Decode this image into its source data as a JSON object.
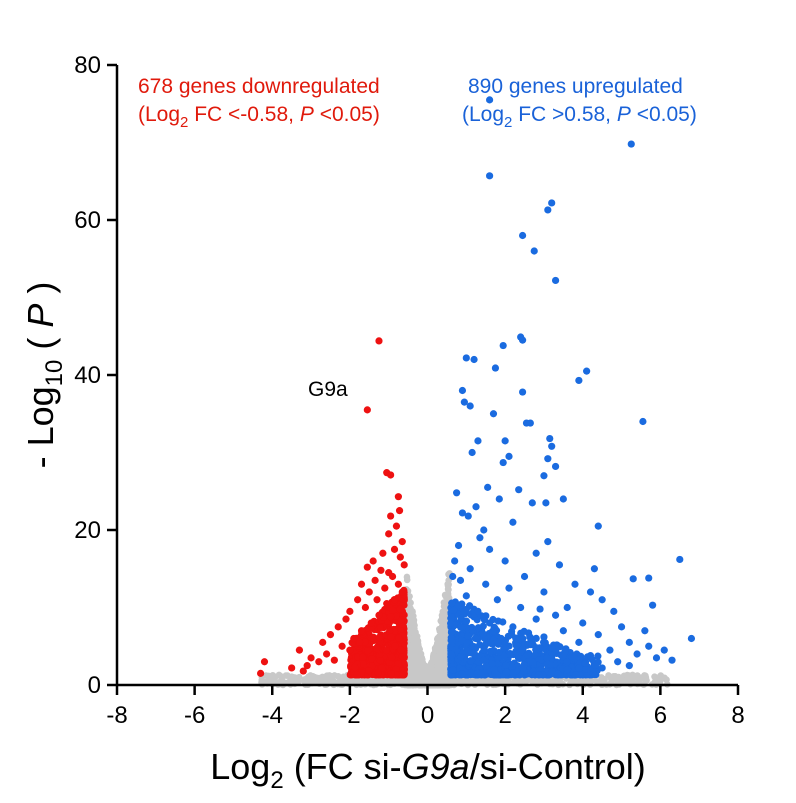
{
  "chart_data": {
    "type": "scatter",
    "title": "",
    "xlabel": {
      "prefix": "Log",
      "sub": "2",
      "mid": " (FC si-",
      "italic": "G9a",
      "suffix": "/si-Control)"
    },
    "ylabel": {
      "prefix": "- Log",
      "sub": "10",
      "mid": " ( ",
      "italic": "P",
      "suffix": " )"
    },
    "xlim": [
      -8,
      8
    ],
    "ylim": [
      0,
      80
    ],
    "x_ticks": [
      -8,
      -6,
      -4,
      -2,
      0,
      2,
      4,
      6,
      8
    ],
    "y_ticks": [
      0,
      20,
      40,
      60,
      80
    ],
    "x_tick_labels": [
      "-8",
      "-6",
      "-4",
      "-2",
      "0",
      "2",
      "4",
      "6",
      "8"
    ],
    "y_tick_labels": [
      "0",
      "20",
      "40",
      "60",
      "80"
    ],
    "colors": {
      "down": "#ee1111",
      "up": "#1a6be0",
      "ns": "#c8c8c8",
      "axis": "#000000"
    },
    "annotations": {
      "down_line1": "678 genes downregulated",
      "down_line2": {
        "pre": "(Log",
        "sub": "2",
        "mid": " FC <-0.58, ",
        "italic": "P",
        "post": " <0.05)"
      },
      "up_line1": "890 genes upregulated",
      "up_line2": {
        "pre": "(Log",
        "sub": "2",
        "mid": " FC >0.58, ",
        "italic": "P",
        "post": " <0.05)"
      },
      "gene_label": "G9a"
    },
    "highlighted_gene": {
      "name": "G9a",
      "x": -1.55,
      "y": 35.5
    },
    "series": [
      {
        "name": "downregulated",
        "color": "#ee1111",
        "points": [
          [
            -1.25,
            44.4
          ],
          [
            -1.55,
            35.5
          ],
          [
            -1.05,
            27.4
          ],
          [
            -0.95,
            27.1
          ],
          [
            -0.75,
            24.3
          ],
          [
            -0.72,
            22.5
          ],
          [
            -0.95,
            21.8
          ],
          [
            -0.8,
            20.5
          ],
          [
            -1.0,
            19.5
          ],
          [
            -0.65,
            18.5
          ],
          [
            -0.85,
            17.5
          ],
          [
            -1.15,
            17.0
          ],
          [
            -1.4,
            16.0
          ],
          [
            -0.7,
            16.5
          ],
          [
            -1.55,
            15.2
          ],
          [
            -0.6,
            15.5
          ],
          [
            -1.2,
            14.8
          ],
          [
            -1.0,
            14.5
          ],
          [
            -0.9,
            14.0
          ],
          [
            -1.35,
            13.5
          ],
          [
            -1.7,
            13.0
          ],
          [
            -0.75,
            13.0
          ],
          [
            -1.1,
            12.5
          ],
          [
            -1.5,
            12.0
          ],
          [
            -0.65,
            12.0
          ],
          [
            -1.3,
            11.0
          ],
          [
            -1.8,
            11.0
          ],
          [
            -0.85,
            11.0
          ],
          [
            -1.05,
            10.5
          ],
          [
            -1.6,
            10.0
          ],
          [
            -2.0,
            9.5
          ],
          [
            -0.7,
            9.8
          ],
          [
            -1.25,
            9.0
          ],
          [
            -2.1,
            8.5
          ],
          [
            -0.95,
            8.8
          ],
          [
            -1.45,
            8.0
          ],
          [
            -2.3,
            7.5
          ],
          [
            -1.7,
            7.0
          ],
          [
            -2.5,
            6.5
          ],
          [
            -1.9,
            6.0
          ],
          [
            -2.7,
            5.5
          ],
          [
            -2.2,
            5.0
          ],
          [
            -3.3,
            4.5
          ],
          [
            -2.6,
            4.0
          ],
          [
            -3.0,
            3.5
          ],
          [
            -3.1,
            2.5
          ],
          [
            -2.8,
            3.0
          ],
          [
            -4.2,
            3.0
          ],
          [
            -4.3,
            1.5
          ],
          [
            -3.5,
            2.2
          ],
          [
            -3.2,
            1.8
          ],
          [
            -2.4,
            3.2
          ],
          [
            -2.0,
            4.5
          ],
          [
            -1.75,
            5.5
          ]
        ]
      },
      {
        "name": "upregulated",
        "color": "#1a6be0",
        "points": [
          [
            1.6,
            75.5
          ],
          [
            5.25,
            69.8
          ],
          [
            1.6,
            65.7
          ],
          [
            3.2,
            62.2
          ],
          [
            3.1,
            61.3
          ],
          [
            2.45,
            58.0
          ],
          [
            2.75,
            56.0
          ],
          [
            3.3,
            52.2
          ],
          [
            2.4,
            44.9
          ],
          [
            2.45,
            44.5
          ],
          [
            1.95,
            43.8
          ],
          [
            1.0,
            42.2
          ],
          [
            1.2,
            42.0
          ],
          [
            1.75,
            40.9
          ],
          [
            4.1,
            40.5
          ],
          [
            3.9,
            39.3
          ],
          [
            0.9,
            38.0
          ],
          [
            2.45,
            37.8
          ],
          [
            0.95,
            36.5
          ],
          [
            1.1,
            36.0
          ],
          [
            1.7,
            35.0
          ],
          [
            5.55,
            34.0
          ],
          [
            2.55,
            33.8
          ],
          [
            2.65,
            33.8
          ],
          [
            3.15,
            31.8
          ],
          [
            1.3,
            31.5
          ],
          [
            1.15,
            30.0
          ],
          [
            3.2,
            30.8
          ],
          [
            3.1,
            29.2
          ],
          [
            2.1,
            29.5
          ],
          [
            1.95,
            28.7
          ],
          [
            3.3,
            28.2
          ],
          [
            1.55,
            25.5
          ],
          [
            2.35,
            25.2
          ],
          [
            0.75,
            24.8
          ],
          [
            3.5,
            24.0
          ],
          [
            2.7,
            23.5
          ],
          [
            1.85,
            24.0
          ],
          [
            3.05,
            23.5
          ],
          [
            1.25,
            23.0
          ],
          [
            1.05,
            21.8
          ],
          [
            0.9,
            22.2
          ],
          [
            4.4,
            20.5
          ],
          [
            2.2,
            21.0
          ],
          [
            1.35,
            19.0
          ],
          [
            0.8,
            18.0
          ],
          [
            1.6,
            17.5
          ],
          [
            2.8,
            17.0
          ],
          [
            0.7,
            16.0
          ],
          [
            6.5,
            16.2
          ],
          [
            2.0,
            16.0
          ],
          [
            3.4,
            15.5
          ],
          [
            1.1,
            15.0
          ],
          [
            5.3,
            13.7
          ],
          [
            5.7,
            13.8
          ],
          [
            2.5,
            14.0
          ],
          [
            0.85,
            13.5
          ],
          [
            3.8,
            13.0
          ],
          [
            1.5,
            13.0
          ],
          [
            4.2,
            12.0
          ],
          [
            2.1,
            12.5
          ],
          [
            3.0,
            12.0
          ],
          [
            4.5,
            11.0
          ],
          [
            1.0,
            11.5
          ],
          [
            1.8,
            11.0
          ],
          [
            3.6,
            10.0
          ],
          [
            5.8,
            10.3
          ],
          [
            2.4,
            10.0
          ],
          [
            4.8,
            9.5
          ],
          [
            1.3,
            9.5
          ],
          [
            3.3,
            9.0
          ],
          [
            2.8,
            8.5
          ],
          [
            4.0,
            8.0
          ],
          [
            1.6,
            8.0
          ],
          [
            5.0,
            7.5
          ],
          [
            3.5,
            7.0
          ],
          [
            2.2,
            7.5
          ],
          [
            5.6,
            7.0
          ],
          [
            4.4,
            6.5
          ],
          [
            6.8,
            6.0
          ],
          [
            3.0,
            6.2
          ],
          [
            5.2,
            5.5
          ],
          [
            3.9,
            5.5
          ],
          [
            5.7,
            5.0
          ],
          [
            6.1,
            4.5
          ],
          [
            4.7,
            4.5
          ],
          [
            3.2,
            4.8
          ],
          [
            5.4,
            4.0
          ],
          [
            4.2,
            3.8
          ],
          [
            5.9,
            3.5
          ],
          [
            6.3,
            3.2
          ],
          [
            4.9,
            3.0
          ],
          [
            3.6,
            3.0
          ],
          [
            5.2,
            2.5
          ],
          [
            4.5,
            2.2
          ],
          [
            2.6,
            5.2
          ],
          [
            1.9,
            6.0
          ],
          [
            2.9,
            9.8
          ],
          [
            1.45,
            20.0
          ],
          [
            3.1,
            18.5
          ],
          [
            0.65,
            14.0
          ],
          [
            4.3,
            15.0
          ],
          [
            2.0,
            31.5
          ],
          [
            3.0,
            27.0
          ]
        ]
      }
    ]
  }
}
